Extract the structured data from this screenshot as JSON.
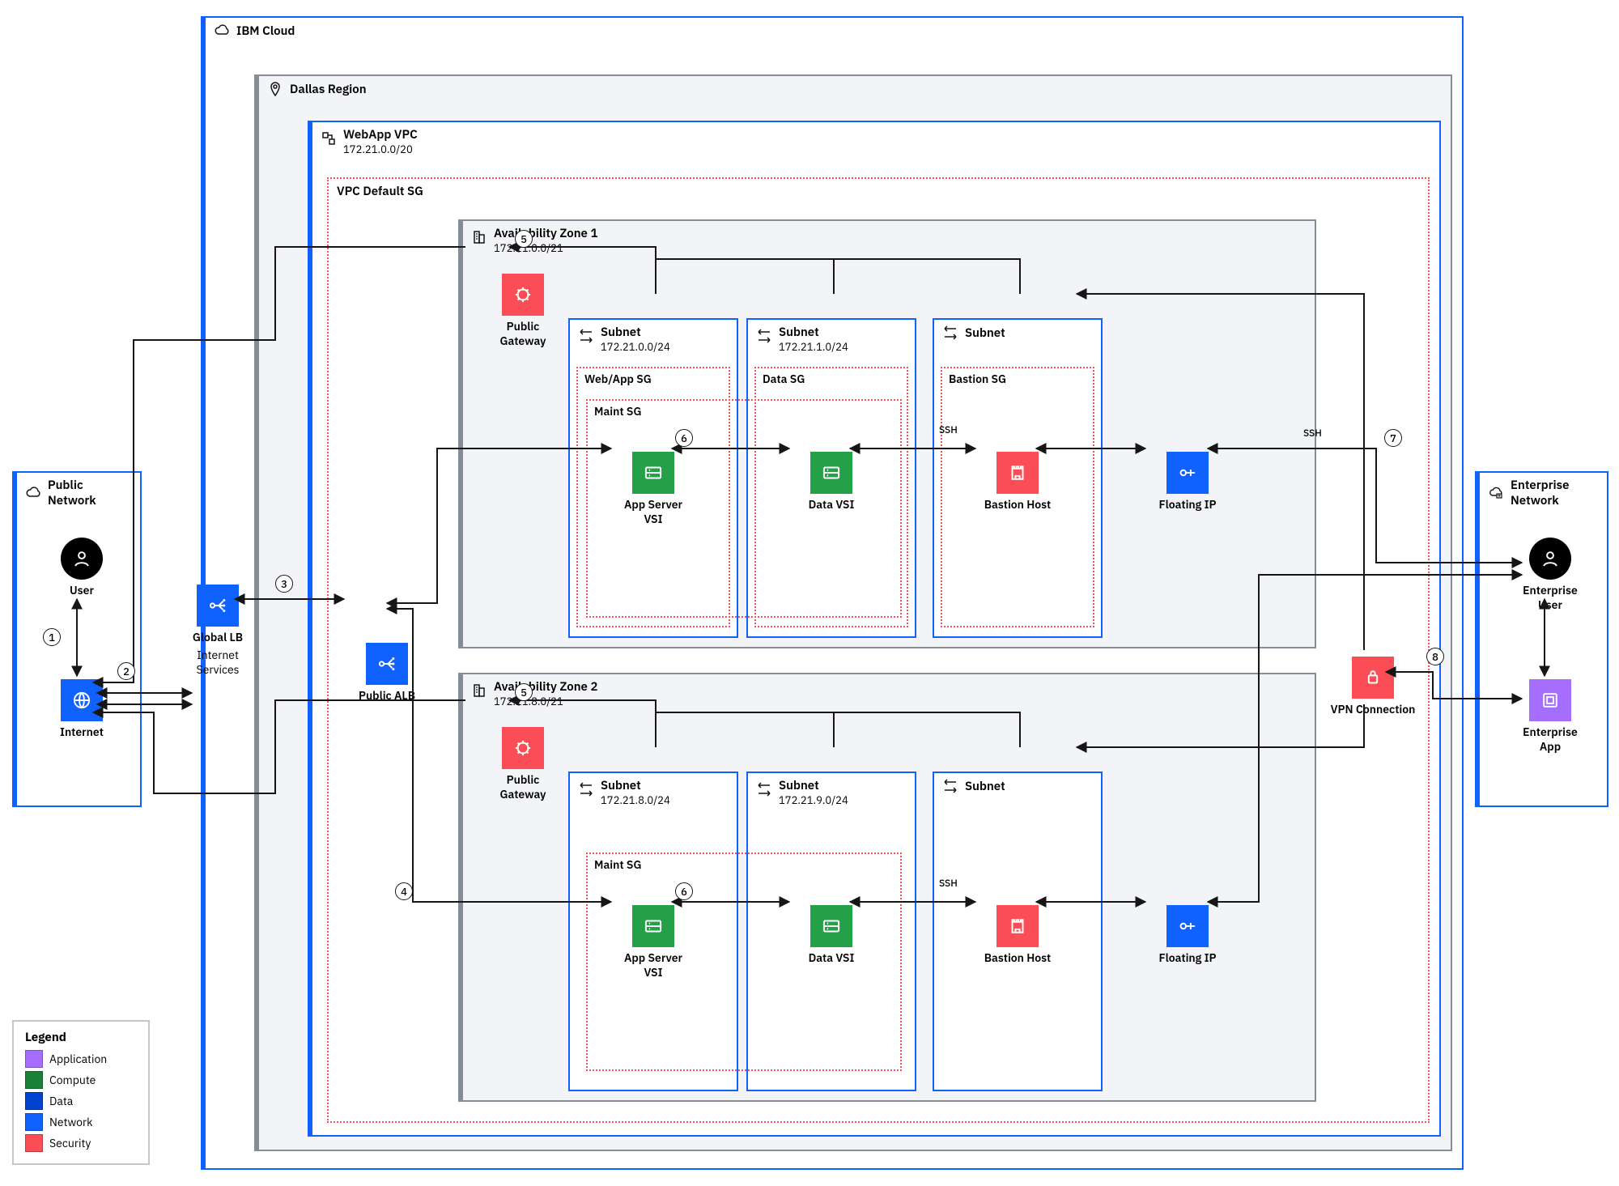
{
  "colors": {
    "network_blue": "#0f62fe",
    "compute_green": "#198038",
    "compute_fill": "#24a148",
    "security_red": "#fa4d56",
    "security_border": "#fa4d56",
    "data_blue": "#0043ce",
    "app_purple": "#a56eff",
    "region_fill": "#f2f4f8",
    "zone_fill": "#f2f4f8",
    "grey_border": "#878d96",
    "light_grey": "#c6c6c6",
    "text": "#161616",
    "black": "#000000",
    "white": "#ffffff"
  },
  "ibm_cloud": {
    "title": "IBM Cloud"
  },
  "public_network": {
    "title": "Public Network"
  },
  "enterprise_network": {
    "title": "Enterprise Network"
  },
  "region": {
    "title": "Dallas Region"
  },
  "vpc": {
    "title": "WebApp VPC",
    "cidr": "172.21.0.0/20"
  },
  "sg_vpc": {
    "title": "VPC Default SG"
  },
  "az1": {
    "title": "Availability Zone 1",
    "cidr": "172.21.0.0/21",
    "subnet1": {
      "title": "Subnet",
      "cidr": "172.21.0.0/24"
    },
    "subnet2": {
      "title": "Subnet",
      "cidr": "172.21.1.0/24"
    },
    "subnet3": {
      "title": "Subnet"
    },
    "sg_web": "Web/App SG",
    "sg_data": "Data SG",
    "sg_bastion": "Bastion SG",
    "sg_maint": "Maint SG"
  },
  "az2": {
    "title": "Availability Zone 2",
    "cidr": "172.21.8.0/21",
    "subnet1": {
      "title": "Subnet",
      "cidr": "172.21.8.0/24"
    },
    "subnet2": {
      "title": "Subnet",
      "cidr": "172.21.9.0/24"
    },
    "subnet3": {
      "title": "Subnet"
    },
    "sg_maint": "Maint SG"
  },
  "nodes": {
    "user": "User",
    "internet": "Internet",
    "global_lb": "Global LB",
    "global_lb_sub": "Internet Services",
    "public_alb": "Public ALB",
    "public_gw": "Public Gateway",
    "app_vsi": "App Server VSI",
    "data_vsi": "Data VSI",
    "bastion": "Bastion Host",
    "floating_ip": "Floating IP",
    "vpn": "VPN Connection",
    "ent_user": "Enterprise User",
    "ent_app": "Enterprise App"
  },
  "edge_labels": {
    "ssh": "SSH"
  },
  "steps": {
    "s1": "1",
    "s2": "2",
    "s3": "3",
    "s4": "4",
    "s5a": "5",
    "s5b": "5",
    "s6a": "6",
    "s6b": "6",
    "s7": "7",
    "s8": "8"
  },
  "legend": {
    "title": "Legend",
    "items": [
      {
        "color": "#a56eff",
        "label": "Application"
      },
      {
        "color": "#198038",
        "label": "Compute"
      },
      {
        "color": "#0043ce",
        "label": "Data"
      },
      {
        "color": "#0f62fe",
        "label": "Network"
      },
      {
        "color": "#fa4d56",
        "label": "Security"
      }
    ]
  }
}
